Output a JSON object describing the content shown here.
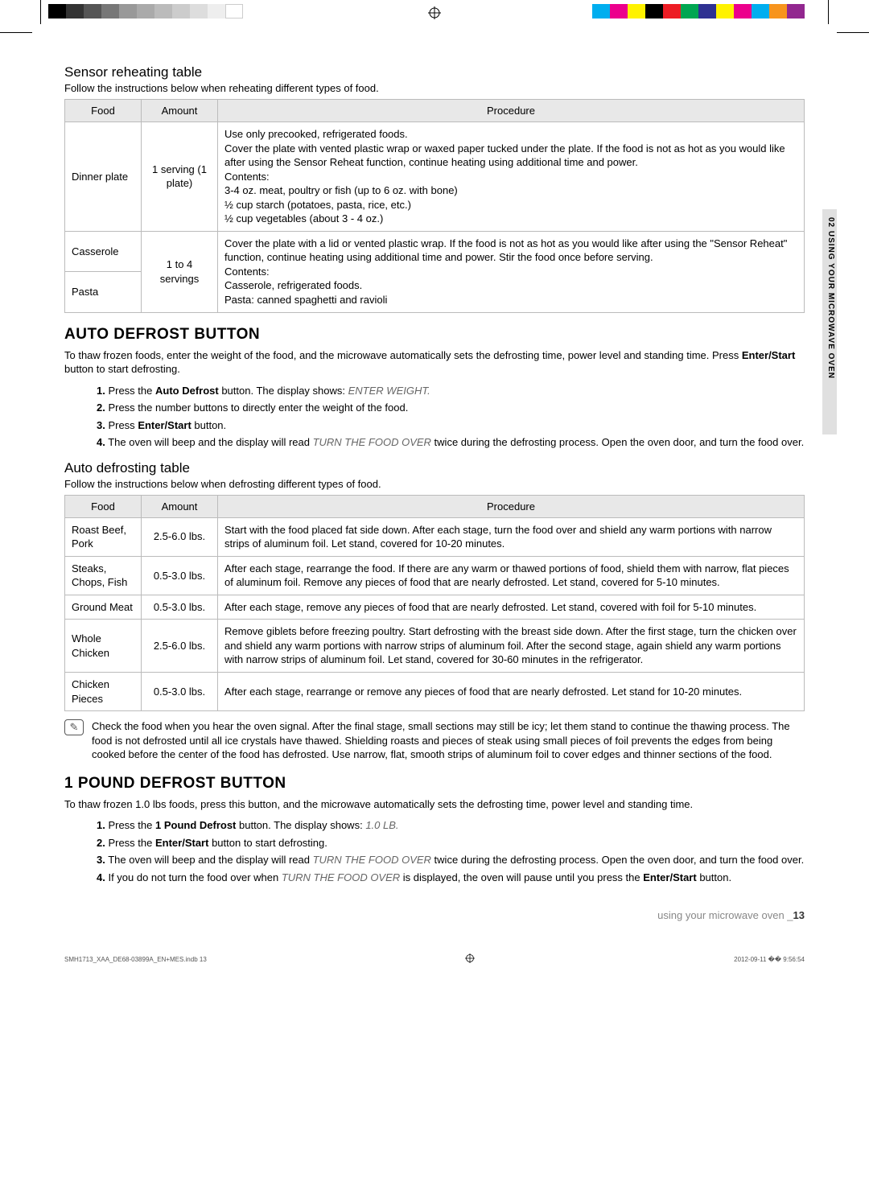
{
  "print_marks": {
    "left_swatches": [
      "#000000",
      "#333333",
      "#555555",
      "#777777",
      "#999999",
      "#aaaaaa",
      "#bbbbbb",
      "#cccccc",
      "#dddddd",
      "#eeeeee",
      "#ffffff"
    ],
    "right_swatches": [
      "#00aeef",
      "#ec008c",
      "#fff200",
      "#000000",
      "#ed1c24",
      "#00a651",
      "#2e3192",
      "#fff200",
      "#ec008c",
      "#00aeef",
      "#f7941d",
      "#92278f"
    ]
  },
  "side_label": "02 USING YOUR MICROWAVE OVEN",
  "sensor_reheating": {
    "heading": "Sensor reheating table",
    "subtitle": "Follow the instructions below when reheating different types of food.",
    "columns": [
      "Food",
      "Amount",
      "Procedure"
    ],
    "rows": [
      {
        "food": "Dinner plate",
        "amount": "1 serving (1 plate)",
        "procedure": "Use only precooked, refrigerated foods.\nCover the plate with vented plastic wrap or waxed paper tucked under the plate. If the food is not as hot as you would like after using the Sensor Reheat function, continue heating using additional time and power.\nContents:\n3-4 oz. meat, poultry or fish (up to 6 oz. with bone)\n½ cup starch (potatoes, pasta, rice, etc.)\n½ cup vegetables (about 3 - 4 oz.)"
      },
      {
        "food": "Casserole",
        "amount": "1 to 4 servings",
        "amount_rowspan": 2,
        "procedure": "Cover the plate with a lid or vented plastic wrap. If the food is not as hot as you would like after using the \"Sensor Reheat\" function, continue heating using additional time and power. Stir the food once before serving.\nContents:\nCasserole, refrigerated foods.\nPasta: canned spaghetti and ravioli",
        "procedure_rowspan": 2
      },
      {
        "food": "Pasta"
      }
    ]
  },
  "auto_defrost": {
    "heading": "AUTO DEFROST BUTTON",
    "intro": "To thaw frozen foods, enter the weight of the food, and the microwave automatically sets the defrosting time, power level and standing time. Press Enter/Start button to start defrosting.",
    "steps": [
      {
        "pre": "Press the ",
        "bold": "Auto Defrost",
        "mid": " button. The display shows: ",
        "italic": "ENTER WEIGHT.",
        "post": ""
      },
      {
        "pre": "Press the number buttons to directly enter the weight of the food.",
        "bold": "",
        "mid": "",
        "italic": "",
        "post": ""
      },
      {
        "pre": "Press ",
        "bold": "Enter/Start",
        "mid": " button.",
        "italic": "",
        "post": ""
      },
      {
        "pre": "The oven will beep and the display will read ",
        "bold": "",
        "mid": "",
        "italic": "TURN THE FOOD OVER",
        "post": " twice during the defrosting process. Open the oven door, and turn the food over."
      }
    ]
  },
  "auto_defrost_table": {
    "heading": "Auto defrosting table",
    "subtitle": "Follow the instructions below when defrosting different types of food.",
    "columns": [
      "Food",
      "Amount",
      "Procedure"
    ],
    "rows": [
      {
        "food": "Roast Beef, Pork",
        "amount": "2.5-6.0 lbs.",
        "procedure": "Start with the food placed fat side down. After each stage, turn the food over and shield any warm portions with narrow strips of aluminum foil. Let stand, covered for 10-20 minutes."
      },
      {
        "food": "Steaks, Chops, Fish",
        "amount": "0.5-3.0 lbs.",
        "procedure": "After each stage, rearrange the food. If there are any warm or thawed portions of food, shield them with narrow, flat pieces of aluminum foil. Remove any pieces of food that are nearly defrosted. Let stand, covered for 5-10 minutes."
      },
      {
        "food": "Ground Meat",
        "amount": "0.5-3.0 lbs.",
        "procedure": "After each stage, remove any pieces of food that are nearly defrosted. Let stand, covered with foil for 5-10 minutes."
      },
      {
        "food": "Whole Chicken",
        "amount": "2.5-6.0 lbs.",
        "procedure": "Remove giblets before freezing poultry. Start defrosting with the breast side down. After the first stage, turn the chicken over and shield any warm portions with narrow strips of aluminum foil. After the second stage, again shield any warm portions with narrow strips of aluminum foil. Let stand, covered for 30-60 minutes in the refrigerator."
      },
      {
        "food": "Chicken Pieces",
        "amount": "0.5-3.0 lbs.",
        "procedure": "After each stage, rearrange or remove any pieces of food that are nearly defrosted. Let stand for 10-20 minutes."
      }
    ]
  },
  "note": {
    "text": "Check the food when you hear the oven signal. After the final stage, small sections may still be icy; let them stand to continue the thawing process. The food is not defrosted until all ice crystals have thawed. Shielding roasts and pieces of steak using small pieces of foil prevents the edges from being cooked before the center of the food has defrosted. Use narrow, flat, smooth strips of aluminum foil to cover edges and thinner sections of the food."
  },
  "pound_defrost": {
    "heading": "1 POUND DEFROST BUTTON",
    "intro": "To thaw frozen 1.0 lbs foods, press this button, and the microwave automatically sets the defrosting time, power level and standing time.",
    "steps": [
      {
        "pre": "Press the ",
        "bold": "1 Pound Defrost",
        "mid": " button. The display shows: ",
        "italic": "1.0 LB.",
        "post": ""
      },
      {
        "pre": "Press the ",
        "bold": "Enter/Start",
        "mid": " button to start defrosting.",
        "italic": "",
        "post": ""
      },
      {
        "pre": "The oven will beep and the display will read ",
        "bold": "",
        "mid": "",
        "italic": "TURN THE FOOD OVER",
        "post": " twice during the defrosting process. Open the oven door, and turn the food over."
      },
      {
        "pre": "If you do not turn the food over when ",
        "bold": "",
        "mid": "",
        "italic": "TURN THE FOOD OVER",
        "post": " is displayed, the oven will pause until you press the ",
        "bold2": "Enter/Start",
        "post2": " button."
      }
    ]
  },
  "footer": {
    "text": "using your microwave oven _",
    "page": "13"
  },
  "print_footer": {
    "left": "SMH1713_XAA_DE68-03899A_EN+MES.indb   13",
    "right": "2012-09-11   �� 9:56:54"
  }
}
